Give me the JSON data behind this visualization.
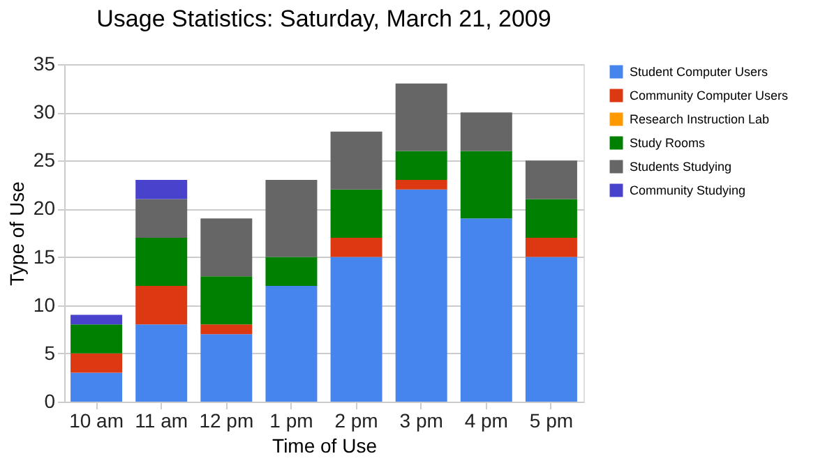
{
  "chart_data": {
    "type": "bar",
    "stacked": true,
    "title": "Usage Statistics: Saturday, March 21, 2009",
    "xlabel": "Time of Use",
    "ylabel": "Type of Use",
    "categories": [
      "10 am",
      "11 am",
      "12 pm",
      "1 pm",
      "2 pm",
      "3 pm",
      "4 pm",
      "5 pm"
    ],
    "series": [
      {
        "name": "Student Computer Users",
        "color": "#4684ee",
        "values": [
          3,
          8,
          7,
          12,
          15,
          22,
          19,
          15
        ]
      },
      {
        "name": "Community Computer Users",
        "color": "#dc3912",
        "values": [
          2,
          4,
          1,
          0,
          2,
          1,
          0,
          2
        ]
      },
      {
        "name": "Research Instruction Lab",
        "color": "#ff9900",
        "values": [
          0,
          0,
          0,
          0,
          0,
          0,
          0,
          0
        ]
      },
      {
        "name": "Study Rooms",
        "color": "#008000",
        "values": [
          3,
          5,
          5,
          3,
          5,
          3,
          7,
          4
        ]
      },
      {
        "name": "Students Studying",
        "color": "#666666",
        "values": [
          0,
          4,
          6,
          8,
          6,
          7,
          4,
          4
        ]
      },
      {
        "name": "Community Studying",
        "color": "#4942cc",
        "values": [
          1,
          2,
          0,
          0,
          0,
          0,
          0,
          0
        ]
      }
    ],
    "ylim": [
      0,
      35
    ],
    "yticks": [
      0,
      5,
      10,
      15,
      20,
      25,
      30,
      35
    ],
    "grid": "y",
    "legend": "right"
  }
}
